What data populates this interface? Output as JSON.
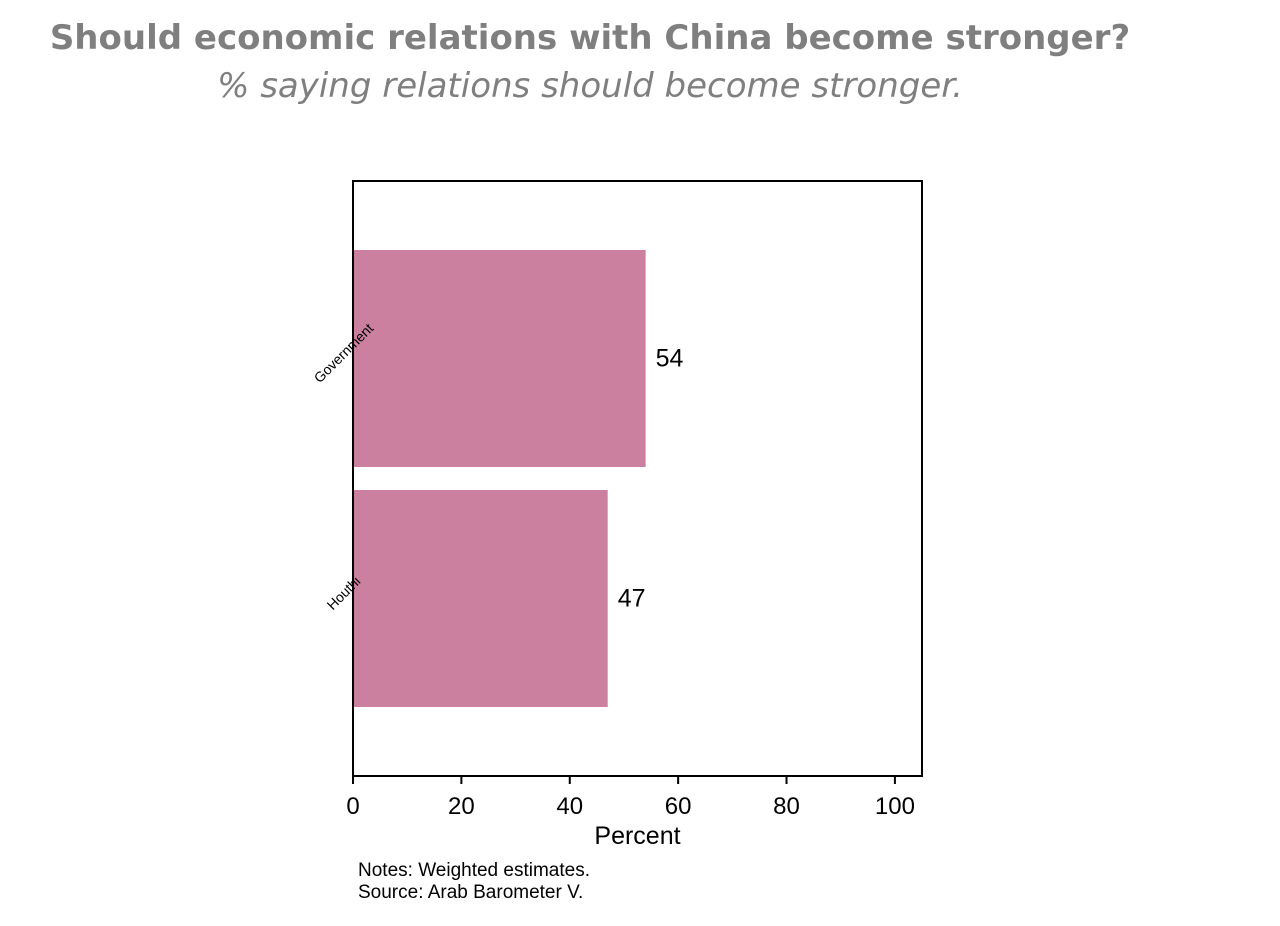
{
  "header": {
    "title": "Should economic relations with China become stronger?",
    "subtitle": "% saying relations should become stronger."
  },
  "notes": {
    "line1": "Notes: Weighted estimates.",
    "line2": "Source: Arab Barometer V."
  },
  "chart_data": {
    "type": "bar",
    "orientation": "horizontal",
    "categories": [
      "Government",
      "Houthi"
    ],
    "values": [
      54,
      47
    ],
    "data_labels": [
      "54",
      "47"
    ],
    "title": "Should economic relations with China become stronger?",
    "subtitle": "% saying relations should become stronger.",
    "xlabel": "Percent",
    "ylabel": "",
    "xlim": [
      0,
      105
    ],
    "xticks": [
      0,
      20,
      40,
      60,
      80,
      100
    ],
    "grid": false,
    "bar_color": "#cc809f"
  }
}
